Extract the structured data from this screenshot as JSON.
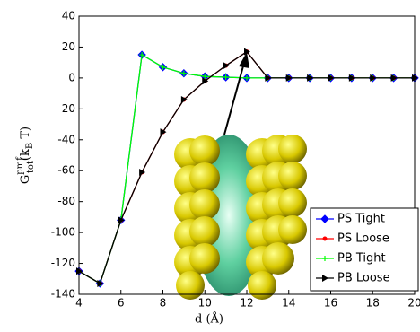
{
  "chart_data": {
    "type": "line",
    "xlabel": "d (Å)",
    "ylabel": {
      "main": "G",
      "sup": "pmf",
      "sub": "tot",
      "open": "(k",
      "sub2": "B",
      "close": " T)"
    },
    "x": [
      4,
      5,
      6,
      7,
      8,
      9,
      10,
      11,
      12,
      13,
      14,
      15,
      16,
      17,
      18,
      19,
      20
    ],
    "series": [
      {
        "name": "PS Tight",
        "color": "#0000ff",
        "marker": "diamond",
        "values": [
          -125,
          -133,
          -92,
          15,
          7,
          3,
          1,
          0.5,
          0,
          0,
          0,
          0,
          0,
          0,
          0,
          0,
          0
        ]
      },
      {
        "name": "PS Loose",
        "color": "#ff0000",
        "marker": "dot",
        "values": [
          -125,
          -133,
          -92,
          -61,
          -35,
          -14,
          -2,
          8,
          17,
          0,
          0,
          0,
          0,
          0,
          0,
          0,
          0
        ]
      },
      {
        "name": "PB Tight",
        "color": "#00ff00",
        "marker": "plus",
        "values": [
          -125,
          -133,
          -92,
          15,
          7,
          3,
          1,
          0.5,
          0,
          0,
          0,
          0,
          0,
          0,
          0,
          0,
          0
        ]
      },
      {
        "name": "PB Loose",
        "color": "#000000",
        "marker": "triangle",
        "values": [
          -125,
          -133,
          -92,
          -61,
          -35,
          -14,
          -2,
          8,
          17,
          0,
          0,
          0,
          0,
          0,
          0,
          0,
          0
        ]
      }
    ],
    "xlim": [
      4,
      20
    ],
    "xticks": [
      4,
      6,
      8,
      10,
      12,
      14,
      16,
      18,
      20
    ],
    "ylim": [
      -140,
      40
    ],
    "yticks": [
      -140,
      -120,
      -100,
      -80,
      -60,
      -40,
      -20,
      0,
      20,
      40
    ],
    "legend": "lower right"
  }
}
